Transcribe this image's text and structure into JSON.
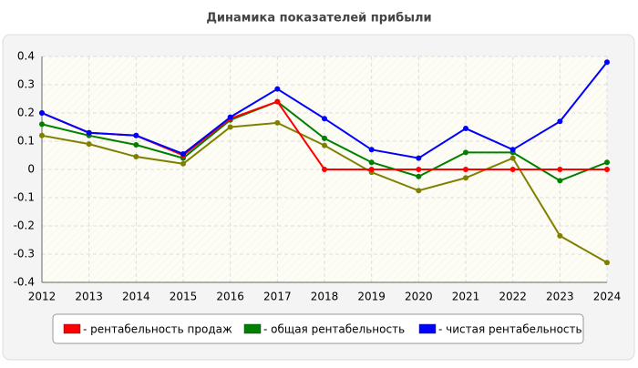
{
  "chart_data": {
    "type": "line",
    "title": "Динамика показателей прибыли",
    "categories": [
      "2012",
      "2013",
      "2014",
      "2015",
      "2016",
      "2017",
      "2018",
      "2019",
      "2020",
      "2021",
      "2022",
      "2023",
      "2024"
    ],
    "series": [
      {
        "color": "#808000",
        "values": [
          0.12,
          0.09,
          0.045,
          0.02,
          0.15,
          0.165,
          0.085,
          -0.01,
          -0.075,
          -0.03,
          0.04,
          -0.235,
          -0.33
        ]
      },
      {
        "name": "- общая рентабельность",
        "color": "#008000",
        "values": [
          0.16,
          0.12,
          0.087,
          0.04,
          0.175,
          0.24,
          0.11,
          0.025,
          -0.025,
          0.06,
          0.06,
          -0.04,
          0.025
        ]
      },
      {
        "name": "- рентабельность продаж",
        "color": "#ff0000",
        "values": [
          0.2,
          0.13,
          0.12,
          0.05,
          0.18,
          0.24,
          0,
          0,
          0,
          0,
          0,
          0,
          0
        ]
      },
      {
        "name": "- чистая рентабельность",
        "color": "#0000ff",
        "values": [
          0.2,
          0.13,
          0.12,
          0.055,
          0.185,
          0.285,
          0.18,
          0.07,
          0.04,
          0.145,
          0.07,
          0.17,
          0.38
        ]
      }
    ],
    "legend_order": [
      2,
      1,
      3
    ],
    "ylim": [
      -0.4,
      0.4
    ],
    "yticks": [
      -0.4,
      -0.3,
      -0.2,
      -0.1,
      0,
      0.1,
      0.2,
      0.3,
      0.4
    ],
    "grid": true
  }
}
